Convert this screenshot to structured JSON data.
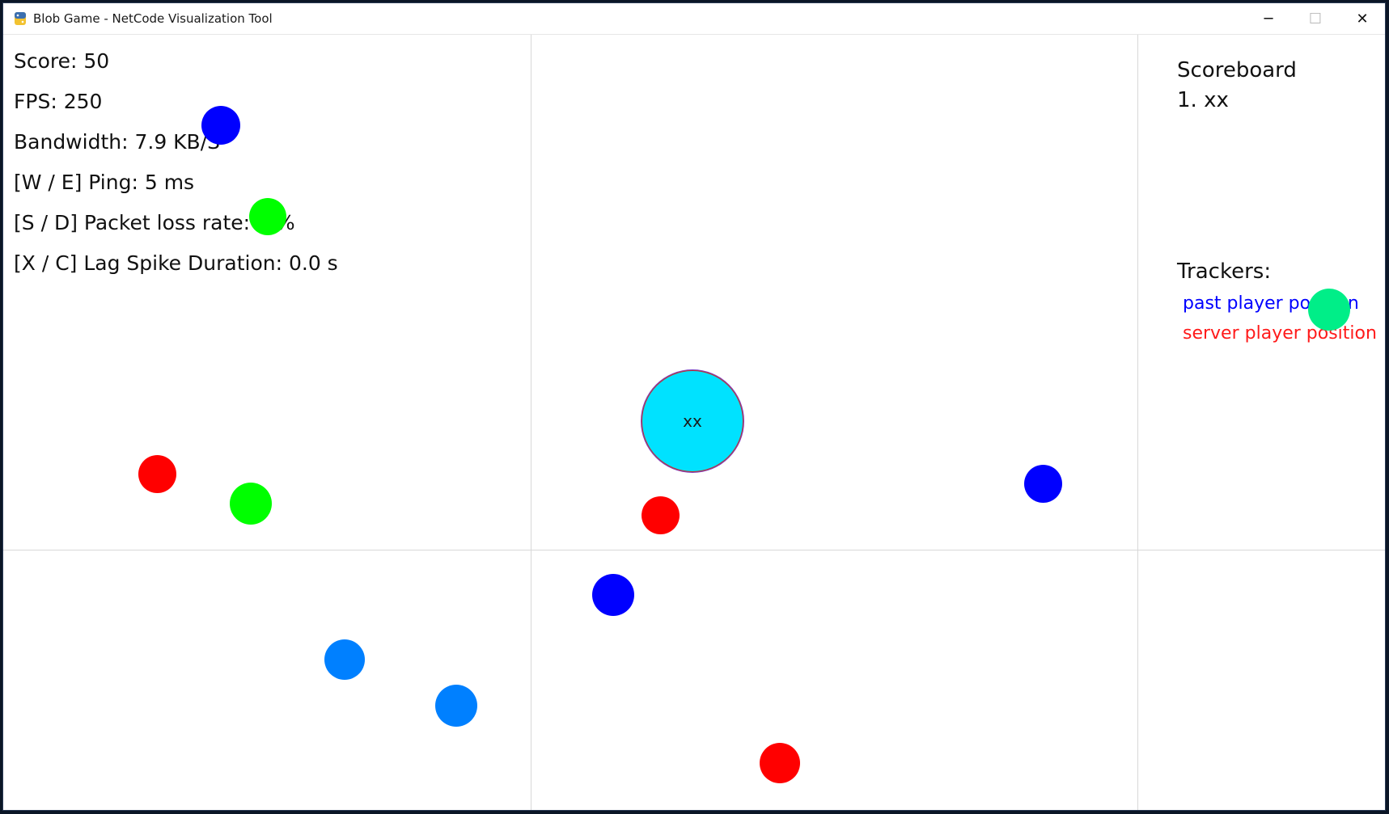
{
  "window": {
    "title": "Blob Game - NetCode Visualization Tool",
    "icon": "python-icon",
    "controls": {
      "minimize": "─",
      "maximize": "☐",
      "close": "✕"
    }
  },
  "hud": {
    "score": "Score: 50",
    "fps": "FPS: 250",
    "bandwidth": "Bandwidth: 7.9 KB/S",
    "ping": "[W / E] Ping: 5 ms",
    "packet_loss": "[S / D] Packet loss rate: 0 %",
    "lag_spike": "[X / C] Lag Spike Duration: 0.0 s"
  },
  "scoreboard": {
    "title": "Scoreboard",
    "entries": [
      "1. xx"
    ]
  },
  "trackers": {
    "title": "Trackers:",
    "past": {
      "label": "past player position",
      "color": "#0000ff"
    },
    "server": {
      "label": "server player position",
      "color": "#ff1a1a"
    }
  },
  "player": {
    "name": "xx",
    "color": "#00e2ff"
  },
  "colors": {
    "red": "#ff0000",
    "green": "#00ff00",
    "blue": "#0000ff",
    "azure": "#0080ff",
    "mint": "#00ee88",
    "grid": "#d8d8d8"
  }
}
